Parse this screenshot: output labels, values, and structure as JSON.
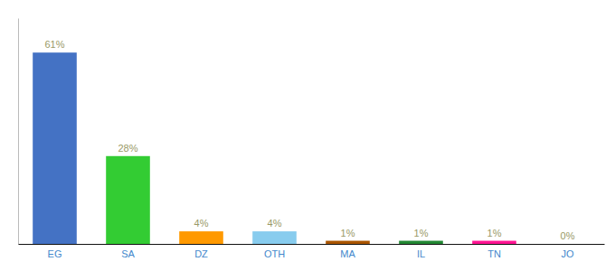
{
  "chart_data": {
    "type": "bar",
    "categories": [
      "EG",
      "SA",
      "DZ",
      "OTH",
      "MA",
      "IL",
      "TN",
      "JO"
    ],
    "values": [
      61,
      28,
      4,
      4,
      1,
      1,
      1,
      0
    ],
    "value_labels": [
      "61%",
      "28%",
      "4%",
      "4%",
      "1%",
      "1%",
      "1%",
      "0%"
    ],
    "data_labels": true,
    "colors": [
      "#4472C4",
      "#33CC33",
      "#FF9900",
      "#88CCEE",
      "#AA5500",
      "#228833",
      "#FF1493",
      "#CCCCCC"
    ],
    "ylim": [
      0,
      72
    ],
    "tick_labels": "x"
  }
}
